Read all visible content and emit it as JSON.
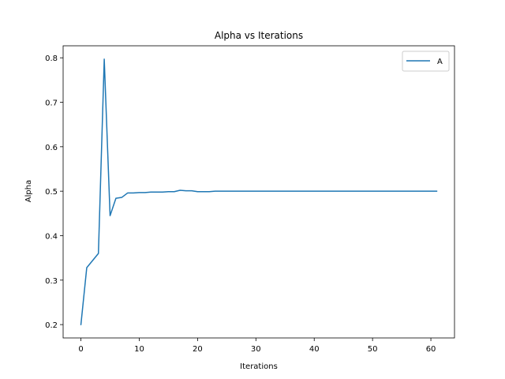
{
  "chart_data": {
    "type": "line",
    "title": "Alpha vs Iterations",
    "xlabel": "Iterations",
    "ylabel": "Alpha",
    "xlim": [
      -3.05,
      64.05
    ],
    "ylim": [
      0.17,
      0.827
    ],
    "xticks": [
      0,
      10,
      20,
      30,
      40,
      50,
      60
    ],
    "yticks": [
      0.2,
      0.3,
      0.4,
      0.5,
      0.6,
      0.7,
      0.8
    ],
    "grid": false,
    "legend_position": "top-right",
    "series": [
      {
        "name": "A",
        "color": "#1f77b4",
        "x": [
          0,
          1,
          2,
          3,
          4,
          5,
          6,
          7,
          8,
          9,
          10,
          11,
          12,
          13,
          14,
          15,
          16,
          17,
          18,
          19,
          20,
          21,
          22,
          23,
          24,
          25,
          26,
          27,
          28,
          29,
          30,
          31,
          32,
          33,
          34,
          35,
          36,
          37,
          38,
          39,
          40,
          41,
          42,
          43,
          44,
          45,
          46,
          47,
          48,
          49,
          50,
          51,
          52,
          53,
          54,
          55,
          56,
          57,
          58,
          59,
          60,
          61
        ],
        "y": [
          0.2,
          0.328,
          0.344,
          0.36,
          0.797,
          0.445,
          0.484,
          0.486,
          0.496,
          0.496,
          0.497,
          0.497,
          0.498,
          0.498,
          0.498,
          0.499,
          0.499,
          0.502,
          0.501,
          0.501,
          0.499,
          0.499,
          0.499,
          0.5,
          0.5,
          0.5,
          0.5,
          0.5,
          0.5,
          0.5,
          0.5,
          0.5,
          0.5,
          0.5,
          0.5,
          0.5,
          0.5,
          0.5,
          0.5,
          0.5,
          0.5,
          0.5,
          0.5,
          0.5,
          0.5,
          0.5,
          0.5,
          0.5,
          0.5,
          0.5,
          0.5,
          0.5,
          0.5,
          0.5,
          0.5,
          0.5,
          0.5,
          0.5,
          0.5,
          0.5,
          0.5,
          0.5
        ]
      }
    ]
  }
}
